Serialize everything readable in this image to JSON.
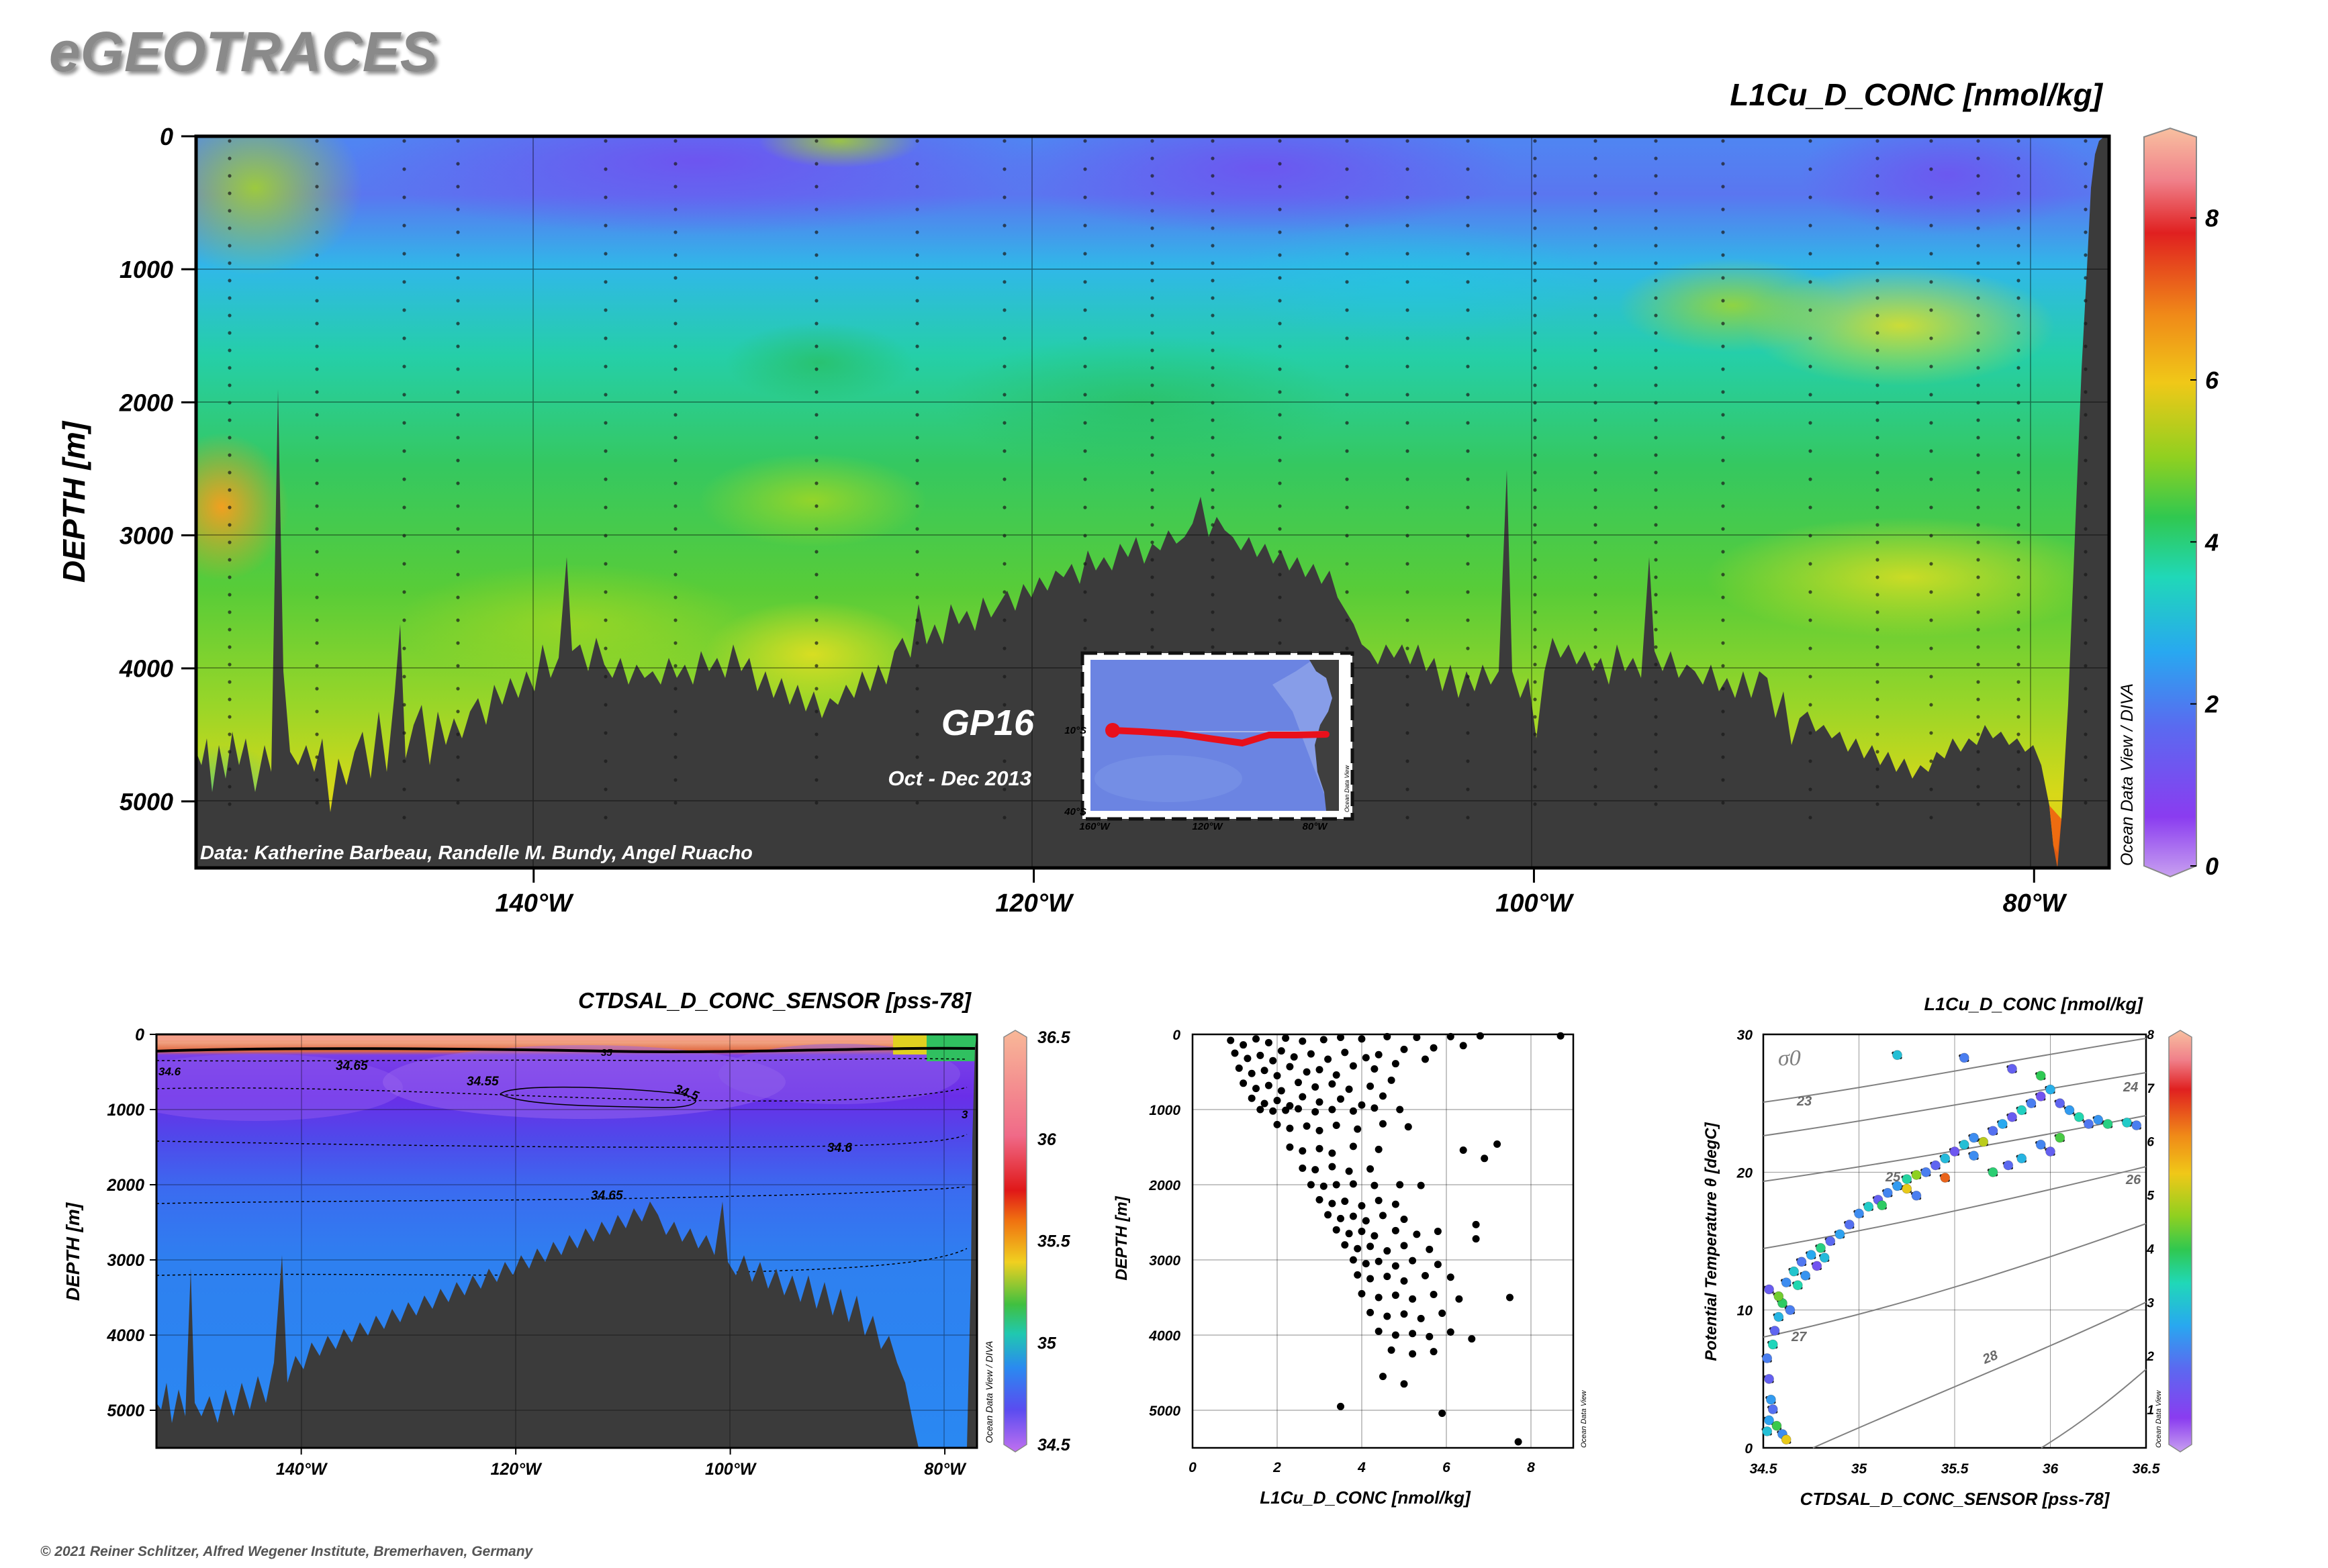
{
  "header": {
    "logo": "eGEOTRACES",
    "copyright": "© 2021 Reiner Schlitzer, Alfred Wegener Institute, Bremerhaven, Germany"
  },
  "chart_data": [
    {
      "type": "heatmap",
      "title": "L1Cu_D_CONC [nmol/kg]",
      "ylabel": "DEPTH [m]",
      "x_ticks": [
        "140°W",
        "120°W",
        "100°W",
        "80°W"
      ],
      "x_tick_values": [
        -140,
        -120,
        -100,
        -80
      ],
      "xlim": [
        -153.5,
        -77
      ],
      "y_ticks": [
        0,
        1000,
        2000,
        3000,
        4000,
        5000
      ],
      "ylim": [
        0,
        5500
      ],
      "colorbar": {
        "min": 0,
        "max": 9,
        "ticks": [
          0,
          2,
          4,
          6,
          8
        ]
      },
      "credit": "Data: Katherine Barbeau, Randelle M. Bundy, Angel Ruacho",
      "odv_label": "Ocean Data View / DIVA",
      "section_name": "GP16",
      "cruise_dates": "Oct - Dec 2013",
      "inset_map": {
        "lat_labels": [
          "10°S",
          "40°S"
        ],
        "lon_labels": [
          "160°W",
          "120°W",
          "80°W"
        ],
        "odv_label": "Ocean Data View"
      },
      "colors": {
        "land": "#3a3a3a",
        "track": "#e8101b"
      }
    },
    {
      "type": "heatmap",
      "title": "CTDSAL_D_CONC_SENSOR [pss-78]",
      "ylabel": "DEPTH [m]",
      "x_ticks": [
        "140°W",
        "120°W",
        "100°W",
        "80°W"
      ],
      "x_tick_values": [
        -140,
        -120,
        -100,
        -80
      ],
      "xlim": [
        -153.5,
        -77
      ],
      "y_ticks": [
        0,
        1000,
        2000,
        3000,
        4000,
        5000
      ],
      "ylim": [
        0,
        5500
      ],
      "colorbar": {
        "min": 34.5,
        "max": 36.5,
        "ticks": [
          "34.5",
          "35",
          "35.5",
          "36",
          "36.5"
        ]
      },
      "contour_labels": [
        "34.65",
        "34.55",
        "34.5",
        "34.6",
        "34.65",
        "35",
        "34.6",
        "3"
      ],
      "odv_label": "Ocean Data View / DIVA"
    },
    {
      "type": "scatter",
      "xlabel": "L1Cu_D_CONC [nmol/kg]",
      "ylabel": "DEPTH [m]",
      "xlim": [
        0,
        9
      ],
      "ylim": [
        0,
        5500
      ],
      "x_ticks": [
        0,
        2,
        4,
        6,
        8
      ],
      "y_ticks": [
        0,
        1000,
        2000,
        3000,
        4000,
        5000
      ],
      "odv_label": "Ocean Data View",
      "points": [
        [
          0.9,
          80
        ],
        [
          1.2,
          140
        ],
        [
          1.5,
          60
        ],
        [
          1.8,
          110
        ],
        [
          2.2,
          50
        ],
        [
          2.6,
          90
        ],
        [
          3.1,
          70
        ],
        [
          3.5,
          40
        ],
        [
          4.0,
          60
        ],
        [
          4.6,
          30
        ],
        [
          5.3,
          40
        ],
        [
          6.1,
          30
        ],
        [
          6.8,
          20
        ],
        [
          8.7,
          20
        ],
        [
          1.0,
          250
        ],
        [
          1.3,
          320
        ],
        [
          1.6,
          280
        ],
        [
          1.9,
          350
        ],
        [
          2.1,
          220
        ],
        [
          2.4,
          300
        ],
        [
          2.8,
          260
        ],
        [
          3.2,
          330
        ],
        [
          3.6,
          240
        ],
        [
          4.1,
          310
        ],
        [
          4.4,
          270
        ],
        [
          5.0,
          200
        ],
        [
          5.7,
          180
        ],
        [
          6.4,
          150
        ],
        [
          1.1,
          450
        ],
        [
          1.4,
          520
        ],
        [
          1.7,
          480
        ],
        [
          2.0,
          550
        ],
        [
          2.3,
          430
        ],
        [
          2.7,
          500
        ],
        [
          3.0,
          470
        ],
        [
          3.4,
          540
        ],
        [
          3.8,
          420
        ],
        [
          4.3,
          460
        ],
        [
          4.8,
          390
        ],
        [
          5.5,
          330
        ],
        [
          1.2,
          650
        ],
        [
          1.5,
          720
        ],
        [
          1.8,
          680
        ],
        [
          2.1,
          750
        ],
        [
          2.5,
          640
        ],
        [
          2.9,
          700
        ],
        [
          3.3,
          660
        ],
        [
          3.7,
          730
        ],
        [
          4.2,
          690
        ],
        [
          4.7,
          610
        ],
        [
          1.4,
          850
        ],
        [
          1.7,
          920
        ],
        [
          2.0,
          880
        ],
        [
          2.3,
          950
        ],
        [
          2.6,
          830
        ],
        [
          3.0,
          900
        ],
        [
          3.5,
          860
        ],
        [
          4.0,
          940
        ],
        [
          4.5,
          820
        ],
        [
          1.6,
          1000
        ],
        [
          1.9,
          1020
        ],
        [
          2.2,
          1010
        ],
        [
          2.5,
          990
        ],
        [
          2.9,
          1030
        ],
        [
          3.3,
          1000
        ],
        [
          3.8,
          1020
        ],
        [
          4.3,
          980
        ],
        [
          4.9,
          1000
        ],
        [
          2.0,
          1200
        ],
        [
          2.3,
          1250
        ],
        [
          2.7,
          1220
        ],
        [
          3.0,
          1280
        ],
        [
          3.4,
          1210
        ],
        [
          3.9,
          1260
        ],
        [
          4.5,
          1190
        ],
        [
          5.1,
          1230
        ],
        [
          2.3,
          1500
        ],
        [
          2.6,
          1550
        ],
        [
          3.0,
          1520
        ],
        [
          3.3,
          1580
        ],
        [
          3.8,
          1490
        ],
        [
          4.4,
          1530
        ],
        [
          2.6,
          1780
        ],
        [
          2.9,
          1800
        ],
        [
          3.3,
          1760
        ],
        [
          3.7,
          1820
        ],
        [
          4.2,
          1790
        ],
        [
          6.4,
          1540
        ],
        [
          7.2,
          1460
        ],
        [
          6.9,
          1650
        ],
        [
          2.8,
          2000
        ],
        [
          3.1,
          2020
        ],
        [
          3.4,
          2000
        ],
        [
          3.8,
          1990
        ],
        [
          4.3,
          2010
        ],
        [
          4.9,
          2000
        ],
        [
          5.4,
          2010
        ],
        [
          3.0,
          2200
        ],
        [
          3.3,
          2250
        ],
        [
          3.6,
          2220
        ],
        [
          4.0,
          2280
        ],
        [
          4.4,
          2210
        ],
        [
          4.8,
          2260
        ],
        [
          3.2,
          2400
        ],
        [
          3.5,
          2450
        ],
        [
          3.8,
          2420
        ],
        [
          4.1,
          2480
        ],
        [
          4.5,
          2410
        ],
        [
          5.0,
          2460
        ],
        [
          3.4,
          2600
        ],
        [
          3.7,
          2650
        ],
        [
          4.0,
          2620
        ],
        [
          4.3,
          2680
        ],
        [
          4.8,
          2610
        ],
        [
          5.3,
          2660
        ],
        [
          5.8,
          2620
        ],
        [
          6.7,
          2530
        ],
        [
          6.7,
          2720
        ],
        [
          3.6,
          2800
        ],
        [
          3.9,
          2850
        ],
        [
          4.2,
          2820
        ],
        [
          4.6,
          2880
        ],
        [
          5.0,
          2810
        ],
        [
          5.6,
          2860
        ],
        [
          3.8,
          3000
        ],
        [
          4.1,
          3050
        ],
        [
          4.4,
          3020
        ],
        [
          4.8,
          3080
        ],
        [
          5.2,
          3010
        ],
        [
          5.8,
          3060
        ],
        [
          3.9,
          3200
        ],
        [
          4.2,
          3250
        ],
        [
          4.6,
          3220
        ],
        [
          5.0,
          3280
        ],
        [
          5.5,
          3210
        ],
        [
          6.1,
          3230
        ],
        [
          4.0,
          3450
        ],
        [
          4.4,
          3500
        ],
        [
          4.8,
          3470
        ],
        [
          5.2,
          3520
        ],
        [
          5.7,
          3460
        ],
        [
          6.3,
          3520
        ],
        [
          7.5,
          3500
        ],
        [
          4.2,
          3700
        ],
        [
          4.6,
          3750
        ],
        [
          5.0,
          3720
        ],
        [
          5.4,
          3780
        ],
        [
          5.9,
          3710
        ],
        [
          4.4,
          3950
        ],
        [
          4.8,
          4000
        ],
        [
          5.2,
          3980
        ],
        [
          5.6,
          4020
        ],
        [
          6.1,
          3960
        ],
        [
          6.6,
          4050
        ],
        [
          4.7,
          4200
        ],
        [
          5.2,
          4250
        ],
        [
          5.7,
          4220
        ],
        [
          4.5,
          4550
        ],
        [
          5.0,
          4650
        ],
        [
          3.5,
          4950
        ],
        [
          5.9,
          5040
        ],
        [
          7.7,
          5420
        ]
      ]
    },
    {
      "type": "scatter",
      "title": "L1Cu_D_CONC [nmol/kg]",
      "xlabel": "CTDSAL_D_CONC_SENSOR [pss-78]",
      "ylabel": "Potential Temperature θ [degC]",
      "xlim": [
        34.5,
        36.5
      ],
      "ylim": [
        0,
        30
      ],
      "x_ticks": [
        "34.5",
        "35",
        "35.5",
        "36",
        "36.5"
      ],
      "y_ticks": [
        0,
        10,
        20,
        30
      ],
      "sigma_label": "σ0",
      "isopycnal_labels": [
        "23",
        "24",
        "25",
        "26",
        "27",
        "28"
      ],
      "colorbar": {
        "min": 0.5,
        "max": 8,
        "ticks": [
          1,
          2,
          3,
          4,
          5,
          6,
          7,
          8
        ]
      },
      "odv_label": "Ocean Data View",
      "points": [
        [
          34.52,
          1.2,
          3.0
        ],
        [
          34.53,
          2.0,
          2.5
        ],
        [
          34.55,
          2.8,
          1.8
        ],
        [
          34.57,
          1.6,
          4.2
        ],
        [
          34.6,
          1.0,
          2.2
        ],
        [
          34.62,
          0.6,
          5.6
        ],
        [
          34.54,
          3.5,
          2.4
        ],
        [
          34.53,
          5.0,
          1.5
        ],
        [
          34.52,
          6.5,
          2.0
        ],
        [
          34.55,
          7.5,
          3.4
        ],
        [
          34.56,
          8.5,
          1.6
        ],
        [
          34.58,
          9.5,
          2.8
        ],
        [
          34.6,
          10.5,
          4.0
        ],
        [
          34.53,
          11.5,
          1.4
        ],
        [
          34.62,
          12.0,
          2.2
        ],
        [
          34.66,
          12.8,
          3.1
        ],
        [
          34.7,
          13.5,
          1.9
        ],
        [
          34.75,
          14.0,
          2.6
        ],
        [
          34.8,
          14.5,
          3.8
        ],
        [
          34.85,
          15.0,
          1.7
        ],
        [
          34.58,
          11.0,
          4.6
        ],
        [
          34.64,
          10.0,
          2.0
        ],
        [
          34.68,
          11.8,
          3.5
        ],
        [
          34.72,
          12.5,
          2.3
        ],
        [
          34.78,
          13.2,
          1.2
        ],
        [
          34.82,
          13.8,
          2.9
        ],
        [
          34.9,
          15.5,
          2.5
        ],
        [
          34.95,
          16.2,
          1.8
        ],
        [
          35.0,
          17.0,
          2.2
        ],
        [
          35.05,
          17.5,
          3.2
        ],
        [
          35.1,
          18.0,
          1.5
        ],
        [
          35.15,
          18.5,
          2.1
        ],
        [
          35.2,
          19.0,
          2.4
        ],
        [
          35.25,
          19.5,
          3.6
        ],
        [
          35.3,
          19.8,
          4.8
        ],
        [
          35.35,
          20.0,
          2.0
        ],
        [
          35.4,
          20.5,
          1.6
        ],
        [
          35.45,
          21.0,
          2.9
        ],
        [
          35.5,
          21.5,
          1.3
        ],
        [
          35.55,
          22.0,
          3.0
        ],
        [
          35.6,
          22.5,
          2.2
        ],
        [
          35.65,
          22.2,
          5.2
        ],
        [
          35.7,
          23.0,
          1.8
        ],
        [
          35.75,
          23.5,
          2.6
        ],
        [
          35.8,
          24.0,
          1.4
        ],
        [
          35.85,
          24.5,
          3.3
        ],
        [
          35.9,
          25.0,
          2.0
        ],
        [
          35.95,
          25.5,
          1.2
        ],
        [
          36.0,
          26.0,
          2.7
        ],
        [
          36.05,
          25.0,
          1.6
        ],
        [
          36.1,
          24.5,
          2.4
        ],
        [
          36.15,
          24.0,
          3.5
        ],
        [
          36.2,
          23.5,
          1.9
        ],
        [
          36.25,
          23.8,
          2.3
        ],
        [
          36.3,
          23.5,
          3.8
        ],
        [
          35.95,
          22.0,
          2.1
        ],
        [
          36.0,
          21.5,
          1.5
        ],
        [
          36.05,
          22.5,
          4.3
        ],
        [
          35.85,
          21.0,
          2.8
        ],
        [
          35.78,
          20.5,
          1.7
        ],
        [
          35.7,
          20.0,
          3.9
        ],
        [
          35.25,
          18.8,
          5.6
        ],
        [
          35.3,
          18.3,
          2.0
        ],
        [
          35.12,
          17.6,
          4.0
        ],
        [
          35.45,
          19.6,
          6.8
        ],
        [
          35.6,
          21.2,
          2.2
        ],
        [
          35.2,
          28.5,
          3.0
        ],
        [
          35.55,
          28.3,
          2.0
        ],
        [
          35.8,
          27.5,
          1.5
        ],
        [
          35.95,
          27.0,
          4.1
        ],
        [
          36.4,
          23.6,
          3.2
        ],
        [
          36.45,
          23.4,
          2.0
        ]
      ]
    }
  ]
}
